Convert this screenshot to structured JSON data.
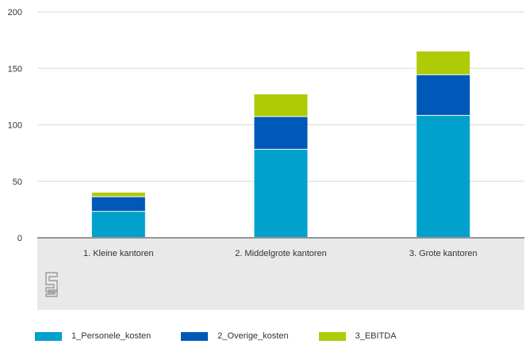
{
  "colors": {
    "series1": "#00a1cd",
    "series2": "#0058b8",
    "series3": "#afcb05",
    "band": "#e9e9e9",
    "grid": "#d9d9d9",
    "axis": "#777777",
    "logo": "#9a9a9a"
  },
  "logo_icon": "cbs-logo-icon",
  "chart_data": {
    "type": "bar",
    "stacked": true,
    "categories": [
      "1. Kleine kantoren",
      "2. Middelgrote kantoren",
      "3. Grote kantoren"
    ],
    "series": [
      {
        "name": "1_Personele_kosten",
        "values": [
          23,
          78,
          108
        ]
      },
      {
        "name": "2_Overige_kosten",
        "values": [
          13,
          29,
          36
        ]
      },
      {
        "name": "3_EBITDA",
        "values": [
          4,
          20,
          21
        ]
      }
    ],
    "ylim": [
      0,
      200
    ],
    "yticks": [
      "0",
      "50",
      "100",
      "150",
      "200"
    ],
    "grid": true,
    "legend_position": "bottom"
  }
}
